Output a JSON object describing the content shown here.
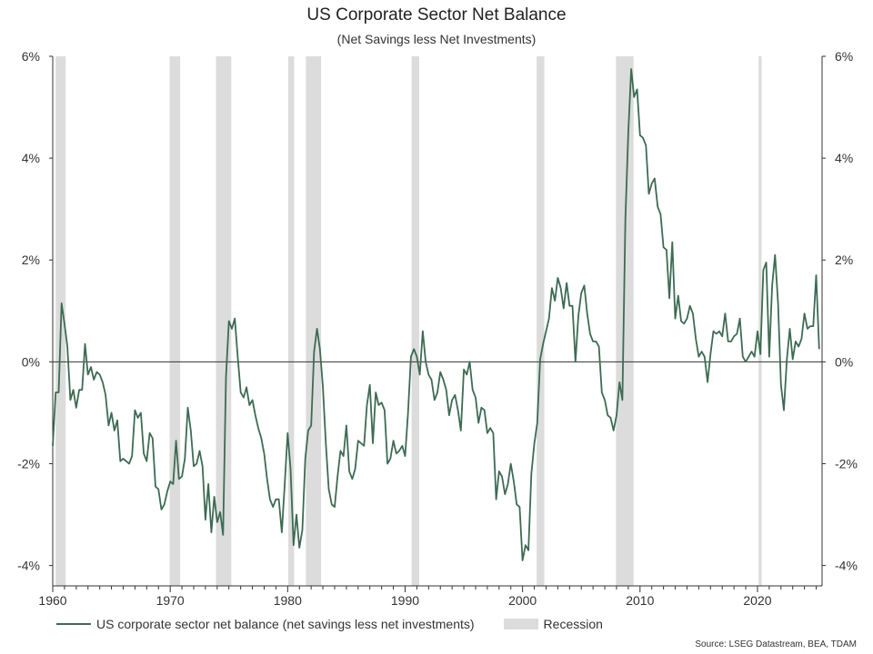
{
  "title": "US Corporate Sector Net Balance",
  "subtitle": "(Net Savings less Net Investments)",
  "legend": {
    "series_label": "US corporate sector net balance (net savings less net investments)",
    "recession_label": "Recession"
  },
  "source": "Source: LSEG Datastream, BEA, TDAM",
  "colors": {
    "line": "#3d6b52",
    "recession": "#dcdcdc",
    "axis": "#333333"
  },
  "chart_data": {
    "type": "line",
    "title": "US Corporate Sector Net Balance",
    "subtitle": "(Net Savings less Net Investments)",
    "xlabel": "",
    "ylabel": "",
    "xlim": [
      1960,
      2025.5
    ],
    "ylim": [
      -4.4,
      6
    ],
    "x_ticks": [
      1960,
      1970,
      1980,
      1990,
      2000,
      2010,
      2020
    ],
    "y_ticks": [
      -4,
      -2,
      0,
      2,
      4,
      6
    ],
    "y_tick_labels": [
      "-4%",
      "-2%",
      "0%",
      "2%",
      "4%",
      "6%"
    ],
    "grid": false,
    "legend_position": "bottom",
    "recessions": [
      [
        1960.25,
        1961.1
      ],
      [
        1969.95,
        1970.85
      ],
      [
        1973.9,
        1975.2
      ],
      [
        1980.05,
        1980.55
      ],
      [
        1981.55,
        1982.85
      ],
      [
        1990.55,
        1991.2
      ],
      [
        2001.2,
        2001.85
      ],
      [
        2007.95,
        2009.45
      ],
      [
        2020.1,
        2020.35
      ]
    ],
    "series": [
      {
        "name": "US corporate sector net balance (net savings less net investments)",
        "points": [
          [
            1960.0,
            -1.65
          ],
          [
            1960.25,
            -0.6
          ],
          [
            1960.5,
            -0.6
          ],
          [
            1960.75,
            1.15
          ],
          [
            1961.0,
            0.75
          ],
          [
            1961.25,
            0.3
          ],
          [
            1961.5,
            -0.75
          ],
          [
            1961.75,
            -0.55
          ],
          [
            1962.0,
            -0.9
          ],
          [
            1962.25,
            -0.55
          ],
          [
            1962.5,
            -0.55
          ],
          [
            1962.75,
            0.35
          ],
          [
            1963.0,
            -0.25
          ],
          [
            1963.25,
            -0.1
          ],
          [
            1963.5,
            -0.35
          ],
          [
            1963.75,
            -0.2
          ],
          [
            1964.0,
            -0.25
          ],
          [
            1964.25,
            -0.4
          ],
          [
            1964.5,
            -0.65
          ],
          [
            1964.75,
            -1.25
          ],
          [
            1965.0,
            -1.0
          ],
          [
            1965.25,
            -1.35
          ],
          [
            1965.5,
            -1.15
          ],
          [
            1965.75,
            -1.95
          ],
          [
            1966.0,
            -1.9
          ],
          [
            1966.25,
            -1.95
          ],
          [
            1966.5,
            -2.0
          ],
          [
            1966.75,
            -1.85
          ],
          [
            1967.0,
            -0.95
          ],
          [
            1967.25,
            -1.1
          ],
          [
            1967.5,
            -1.0
          ],
          [
            1967.75,
            -1.8
          ],
          [
            1968.0,
            -1.95
          ],
          [
            1968.25,
            -1.4
          ],
          [
            1968.5,
            -1.5
          ],
          [
            1968.75,
            -2.45
          ],
          [
            1969.0,
            -2.5
          ],
          [
            1969.25,
            -2.9
          ],
          [
            1969.5,
            -2.8
          ],
          [
            1969.75,
            -2.55
          ],
          [
            1970.0,
            -2.35
          ],
          [
            1970.25,
            -2.4
          ],
          [
            1970.5,
            -1.55
          ],
          [
            1970.75,
            -2.3
          ],
          [
            1971.0,
            -2.25
          ],
          [
            1971.25,
            -1.9
          ],
          [
            1971.5,
            -0.9
          ],
          [
            1971.75,
            -1.35
          ],
          [
            1972.0,
            -2.05
          ],
          [
            1972.25,
            -2.0
          ],
          [
            1972.5,
            -1.75
          ],
          [
            1972.75,
            -2.05
          ],
          [
            1973.0,
            -3.1
          ],
          [
            1973.25,
            -2.4
          ],
          [
            1973.5,
            -3.35
          ],
          [
            1973.75,
            -2.65
          ],
          [
            1974.0,
            -3.15
          ],
          [
            1974.25,
            -2.95
          ],
          [
            1974.5,
            -3.4
          ],
          [
            1974.75,
            -0.3
          ],
          [
            1975.0,
            0.8
          ],
          [
            1975.25,
            0.65
          ],
          [
            1975.5,
            0.85
          ],
          [
            1975.75,
            0.1
          ],
          [
            1976.0,
            -0.6
          ],
          [
            1976.25,
            -0.7
          ],
          [
            1976.5,
            -0.5
          ],
          [
            1976.75,
            -0.85
          ],
          [
            1977.0,
            -0.75
          ],
          [
            1977.25,
            -1.05
          ],
          [
            1977.5,
            -1.3
          ],
          [
            1977.75,
            -1.5
          ],
          [
            1978.0,
            -1.8
          ],
          [
            1978.25,
            -2.3
          ],
          [
            1978.5,
            -2.7
          ],
          [
            1978.75,
            -2.85
          ],
          [
            1979.0,
            -2.7
          ],
          [
            1979.25,
            -2.7
          ],
          [
            1979.5,
            -3.35
          ],
          [
            1979.75,
            -2.4
          ],
          [
            1980.0,
            -1.4
          ],
          [
            1980.25,
            -2.1
          ],
          [
            1980.5,
            -3.6
          ],
          [
            1980.75,
            -3.0
          ],
          [
            1981.0,
            -3.65
          ],
          [
            1981.25,
            -3.3
          ],
          [
            1981.5,
            -1.9
          ],
          [
            1981.75,
            -1.35
          ],
          [
            1982.0,
            -1.25
          ],
          [
            1982.25,
            0.2
          ],
          [
            1982.5,
            0.65
          ],
          [
            1982.75,
            0.25
          ],
          [
            1983.0,
            -0.5
          ],
          [
            1983.25,
            -1.6
          ],
          [
            1983.5,
            -2.5
          ],
          [
            1983.75,
            -2.8
          ],
          [
            1984.0,
            -2.85
          ],
          [
            1984.25,
            -2.25
          ],
          [
            1984.5,
            -1.75
          ],
          [
            1984.75,
            -1.85
          ],
          [
            1985.0,
            -1.25
          ],
          [
            1985.25,
            -2.15
          ],
          [
            1985.5,
            -2.3
          ],
          [
            1985.75,
            -2.1
          ],
          [
            1986.0,
            -1.55
          ],
          [
            1986.25,
            -1.6
          ],
          [
            1986.5,
            -1.65
          ],
          [
            1986.75,
            -0.85
          ],
          [
            1987.0,
            -0.45
          ],
          [
            1987.25,
            -1.6
          ],
          [
            1987.5,
            -0.6
          ],
          [
            1987.75,
            -0.85
          ],
          [
            1988.0,
            -0.8
          ],
          [
            1988.25,
            -0.95
          ],
          [
            1988.5,
            -2.0
          ],
          [
            1988.75,
            -1.9
          ],
          [
            1989.0,
            -1.55
          ],
          [
            1989.25,
            -1.8
          ],
          [
            1989.5,
            -1.75
          ],
          [
            1989.75,
            -1.65
          ],
          [
            1990.0,
            -1.85
          ],
          [
            1990.25,
            -1.0
          ],
          [
            1990.5,
            0.1
          ],
          [
            1990.75,
            0.25
          ],
          [
            1991.0,
            0.1
          ],
          [
            1991.25,
            -0.25
          ],
          [
            1991.5,
            0.6
          ],
          [
            1991.75,
            0.0
          ],
          [
            1992.0,
            -0.25
          ],
          [
            1992.25,
            -0.35
          ],
          [
            1992.5,
            -0.75
          ],
          [
            1992.75,
            -0.6
          ],
          [
            1993.0,
            -0.2
          ],
          [
            1993.25,
            -0.35
          ],
          [
            1993.5,
            -0.55
          ],
          [
            1993.75,
            -1.05
          ],
          [
            1994.0,
            -0.75
          ],
          [
            1994.25,
            -0.65
          ],
          [
            1994.5,
            -0.95
          ],
          [
            1994.75,
            -1.35
          ],
          [
            1995.0,
            -0.15
          ],
          [
            1995.25,
            -0.25
          ],
          [
            1995.5,
            0.0
          ],
          [
            1995.75,
            -0.55
          ],
          [
            1996.0,
            -0.7
          ],
          [
            1996.25,
            -1.2
          ],
          [
            1996.5,
            -0.9
          ],
          [
            1996.75,
            -0.95
          ],
          [
            1997.0,
            -1.4
          ],
          [
            1997.25,
            -1.3
          ],
          [
            1997.5,
            -1.4
          ],
          [
            1997.75,
            -2.7
          ],
          [
            1998.0,
            -2.15
          ],
          [
            1998.25,
            -2.25
          ],
          [
            1998.5,
            -2.6
          ],
          [
            1998.75,
            -2.4
          ],
          [
            1999.0,
            -2.0
          ],
          [
            1999.25,
            -2.35
          ],
          [
            1999.5,
            -2.8
          ],
          [
            1999.75,
            -2.85
          ],
          [
            2000.0,
            -3.9
          ],
          [
            2000.25,
            -3.6
          ],
          [
            2000.5,
            -3.7
          ],
          [
            2000.75,
            -2.2
          ],
          [
            2001.0,
            -1.6
          ],
          [
            2001.25,
            -1.2
          ],
          [
            2001.5,
            0.05
          ],
          [
            2001.75,
            0.35
          ],
          [
            2002.0,
            0.6
          ],
          [
            2002.25,
            0.85
          ],
          [
            2002.5,
            1.45
          ],
          [
            2002.75,
            1.2
          ],
          [
            2003.0,
            1.65
          ],
          [
            2003.25,
            1.45
          ],
          [
            2003.5,
            1.05
          ],
          [
            2003.75,
            1.55
          ],
          [
            2004.0,
            1.1
          ],
          [
            2004.25,
            1.1
          ],
          [
            2004.5,
            0.0
          ],
          [
            2004.75,
            0.9
          ],
          [
            2005.0,
            1.35
          ],
          [
            2005.25,
            1.5
          ],
          [
            2005.5,
            0.95
          ],
          [
            2005.75,
            0.55
          ],
          [
            2006.0,
            0.4
          ],
          [
            2006.25,
            0.4
          ],
          [
            2006.5,
            0.3
          ],
          [
            2006.75,
            -0.6
          ],
          [
            2007.0,
            -0.75
          ],
          [
            2007.25,
            -1.05
          ],
          [
            2007.5,
            -1.1
          ],
          [
            2007.75,
            -1.35
          ],
          [
            2008.0,
            -1.05
          ],
          [
            2008.25,
            -0.4
          ],
          [
            2008.5,
            -0.75
          ],
          [
            2008.75,
            2.8
          ],
          [
            2009.0,
            4.5
          ],
          [
            2009.25,
            5.75
          ],
          [
            2009.5,
            5.2
          ],
          [
            2009.75,
            5.35
          ],
          [
            2010.0,
            4.45
          ],
          [
            2010.25,
            4.4
          ],
          [
            2010.5,
            4.25
          ],
          [
            2010.75,
            3.3
          ],
          [
            2011.0,
            3.5
          ],
          [
            2011.25,
            3.6
          ],
          [
            2011.5,
            3.05
          ],
          [
            2011.75,
            2.9
          ],
          [
            2012.0,
            2.25
          ],
          [
            2012.25,
            2.2
          ],
          [
            2012.5,
            1.25
          ],
          [
            2012.75,
            2.35
          ],
          [
            2013.0,
            0.85
          ],
          [
            2013.25,
            1.3
          ],
          [
            2013.5,
            0.8
          ],
          [
            2013.75,
            0.75
          ],
          [
            2014.0,
            0.85
          ],
          [
            2014.25,
            1.1
          ],
          [
            2014.5,
            0.95
          ],
          [
            2014.75,
            0.45
          ],
          [
            2015.0,
            0.1
          ],
          [
            2015.25,
            0.2
          ],
          [
            2015.5,
            0.1
          ],
          [
            2015.75,
            -0.4
          ],
          [
            2016.0,
            0.15
          ],
          [
            2016.25,
            0.6
          ],
          [
            2016.5,
            0.55
          ],
          [
            2016.75,
            0.6
          ],
          [
            2017.0,
            0.5
          ],
          [
            2017.25,
            0.95
          ],
          [
            2017.5,
            0.4
          ],
          [
            2017.75,
            0.4
          ],
          [
            2018.0,
            0.5
          ],
          [
            2018.25,
            0.55
          ],
          [
            2018.5,
            0.85
          ],
          [
            2018.75,
            0.1
          ],
          [
            2019.0,
            0.0
          ],
          [
            2019.25,
            0.1
          ],
          [
            2019.5,
            0.2
          ],
          [
            2019.75,
            0.1
          ],
          [
            2020.0,
            0.6
          ],
          [
            2020.25,
            0.15
          ],
          [
            2020.5,
            1.8
          ],
          [
            2020.75,
            1.95
          ],
          [
            2021.0,
            0.1
          ],
          [
            2021.25,
            1.5
          ],
          [
            2021.5,
            2.1
          ],
          [
            2021.75,
            1.15
          ],
          [
            2022.0,
            -0.45
          ],
          [
            2022.25,
            -0.95
          ],
          [
            2022.5,
            0.05
          ],
          [
            2022.75,
            0.65
          ],
          [
            2023.0,
            0.05
          ],
          [
            2023.25,
            0.4
          ],
          [
            2023.5,
            0.3
          ],
          [
            2023.75,
            0.45
          ],
          [
            2024.0,
            0.95
          ],
          [
            2024.25,
            0.65
          ],
          [
            2024.5,
            0.7
          ],
          [
            2024.75,
            0.7
          ],
          [
            2025.0,
            1.7
          ],
          [
            2025.25,
            0.25
          ]
        ]
      }
    ]
  }
}
